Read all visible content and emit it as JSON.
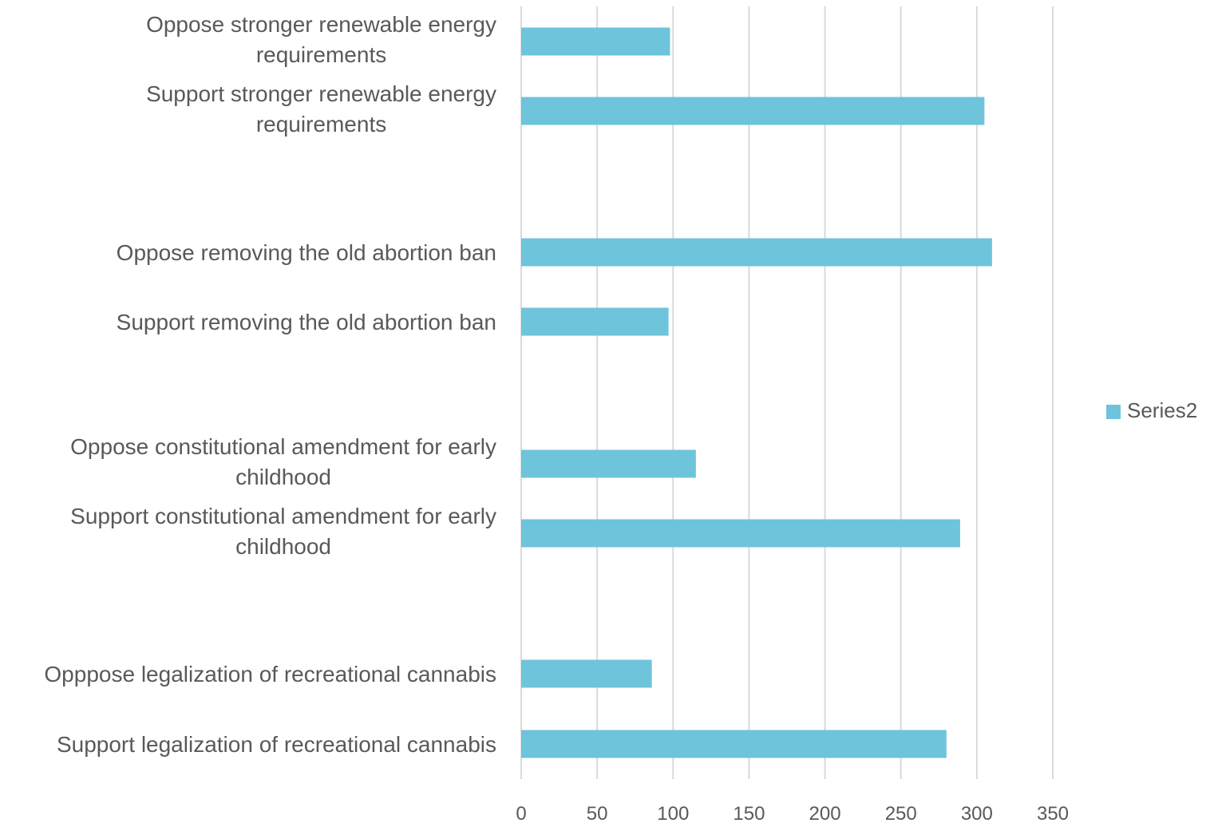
{
  "chart_data": {
    "type": "bar",
    "orientation": "horizontal",
    "categories": [
      {
        "label": [
          "Oppose stronger renewable energy",
          "requirements"
        ],
        "value": 98
      },
      {
        "label": [
          "Support stronger renewable energy",
          "requirements"
        ],
        "value": 305
      },
      {
        "label": [
          "Oppose removing the old abortion ban"
        ],
        "value": 310
      },
      {
        "label": [
          "Support removing the old abortion ban"
        ],
        "value": 97
      },
      {
        "label": [
          "Oppose constitutional amendment for early",
          "childhood"
        ],
        "value": 115
      },
      {
        "label": [
          "Support constitutional amendment for early",
          "childhood"
        ],
        "value": 289
      },
      {
        "label": [
          "Opppose legalization  of recreational cannabis"
        ],
        "value": 86
      },
      {
        "label": [
          "Support legalization of recreational cannabis"
        ],
        "value": 280
      }
    ],
    "series": [
      {
        "name": "Series2",
        "color": "#6ec4db"
      }
    ],
    "xlim": [
      0,
      350
    ],
    "xticks": [
      "0",
      "50",
      "100",
      "150",
      "200",
      "250",
      "300",
      "350"
    ],
    "grid": "vertical",
    "legend_position": "right",
    "title": "",
    "xlabel": "",
    "ylabel": ""
  },
  "legend": {
    "label": "Series2"
  }
}
